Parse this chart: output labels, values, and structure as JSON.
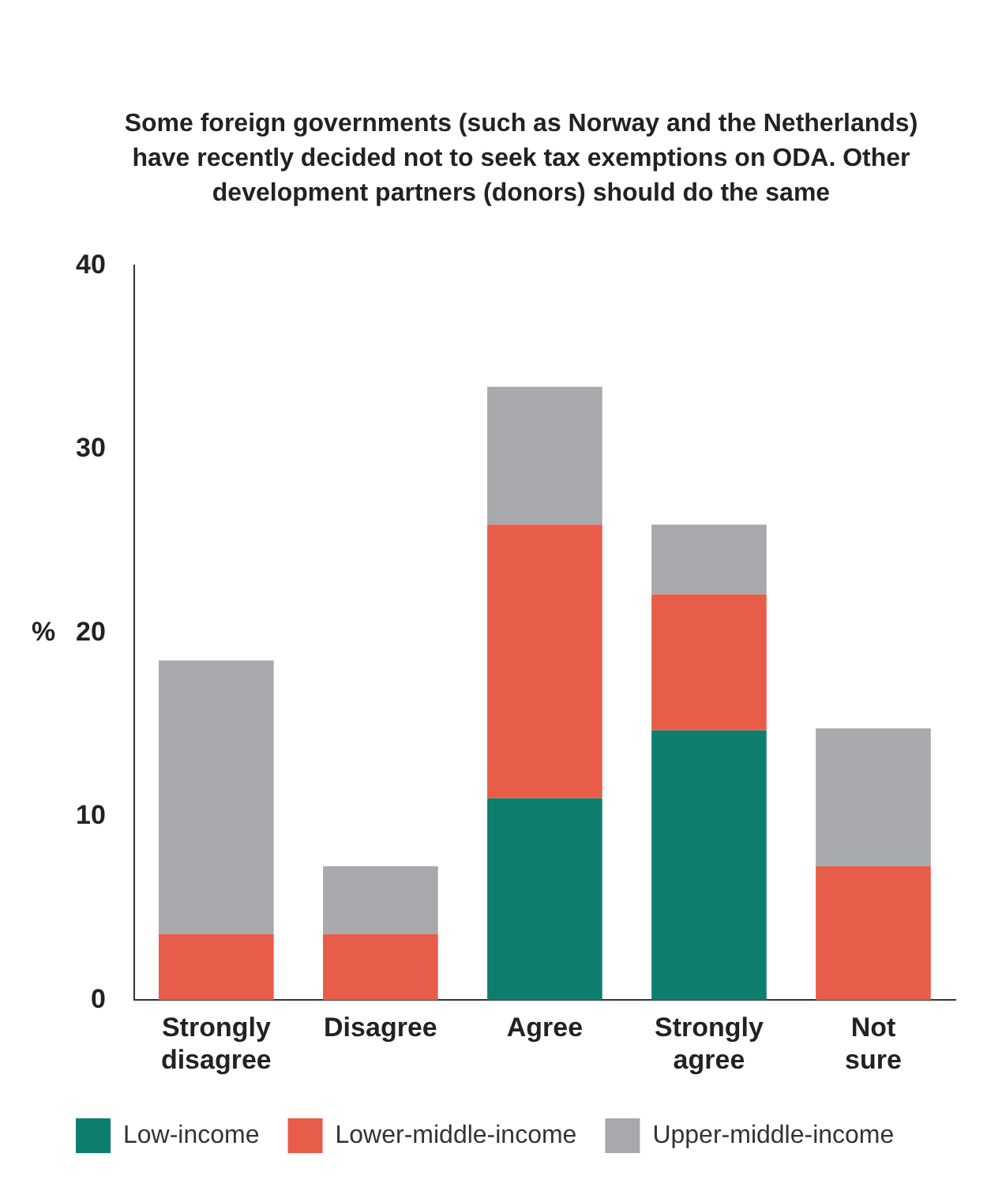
{
  "chart_data": {
    "type": "bar",
    "stacked": true,
    "title": "Some foreign governments (such as Norway and the Netherlands) have recently decided not to seek tax exemptions on ODA. Other development partners (donors) should do the same",
    "ylabel": "%",
    "categories": [
      "Strongly disagree",
      "Disagree",
      "Agree",
      "Strongly agree",
      "Not sure"
    ],
    "series": [
      {
        "name": "Low-income",
        "color": "#0e7f6e",
        "values": [
          0,
          0,
          11.0,
          14.7,
          0
        ]
      },
      {
        "name": "Lower-middle-income",
        "color": "#e85c4a",
        "values": [
          3.6,
          3.6,
          14.9,
          7.4,
          7.3
        ]
      },
      {
        "name": "Upper-middle-income",
        "color": "#a7a9ac",
        "values": [
          14.9,
          3.7,
          7.5,
          3.8,
          7.5
        ]
      }
    ],
    "ylim": [
      0,
      40
    ],
    "yticks": [
      0,
      10,
      20,
      30,
      40
    ],
    "grid": false,
    "legend": "bottom"
  }
}
